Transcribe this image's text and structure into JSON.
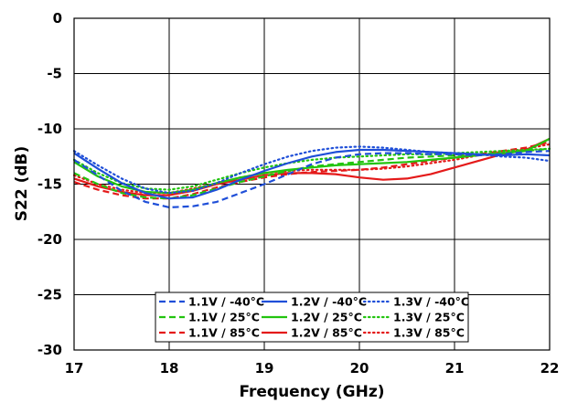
{
  "chart_data": {
    "type": "line",
    "title": "",
    "xlabel": "Frequency (GHz)",
    "ylabel": "S22 (dB)",
    "xlim": [
      17,
      22
    ],
    "ylim": [
      -30,
      0
    ],
    "xticks": [
      17,
      18,
      19,
      20,
      21,
      22
    ],
    "yticks": [
      0,
      -5,
      -10,
      -15,
      -20,
      -25,
      -30
    ],
    "grid": true,
    "legend_position": "bottom-center",
    "series": [
      {
        "name": "1.1V / -40°C",
        "color": "#1f4fd8",
        "dash": "dashed",
        "x": [
          17,
          17.25,
          17.5,
          17.75,
          18,
          18.25,
          18.5,
          18.75,
          19,
          19.25,
          19.5,
          19.75,
          20,
          20.25,
          20.5,
          20.75,
          21,
          21.25,
          21.5,
          21.75,
          22
        ],
        "y": [
          -12.8,
          -14.2,
          -15.6,
          -16.6,
          -17.1,
          -17.0,
          -16.6,
          -15.8,
          -15.0,
          -14.1,
          -13.2,
          -12.6,
          -12.3,
          -12.2,
          -12.2,
          -12.3,
          -12.3,
          -12.4,
          -12.3,
          -12.1,
          -12.0
        ]
      },
      {
        "name": "1.2V / -40°C",
        "color": "#1f4fd8",
        "dash": "solid",
        "x": [
          17,
          17.25,
          17.5,
          17.75,
          18,
          18.25,
          18.5,
          18.75,
          19,
          19.25,
          19.5,
          19.75,
          20,
          20.25,
          20.5,
          20.75,
          21,
          21.25,
          21.5,
          21.75,
          22
        ],
        "y": [
          -12.2,
          -13.6,
          -14.9,
          -15.8,
          -16.3,
          -16.2,
          -15.5,
          -14.6,
          -13.8,
          -13.1,
          -12.5,
          -12.1,
          -11.9,
          -11.9,
          -12.0,
          -12.1,
          -12.2,
          -12.3,
          -12.4,
          -12.3,
          -12.4
        ]
      },
      {
        "name": "1.3V / -40°C",
        "color": "#1f4fd8",
        "dash": "dotted",
        "x": [
          17,
          17.25,
          17.5,
          17.75,
          18,
          18.25,
          18.5,
          18.75,
          19,
          19.25,
          19.5,
          19.75,
          20,
          20.25,
          20.5,
          20.75,
          21,
          21.25,
          21.5,
          21.75,
          22
        ],
        "y": [
          -12.0,
          -13.3,
          -14.5,
          -15.4,
          -15.8,
          -15.6,
          -14.9,
          -14.0,
          -13.2,
          -12.5,
          -12.0,
          -11.7,
          -11.6,
          -11.7,
          -11.9,
          -12.1,
          -12.2,
          -12.3,
          -12.5,
          -12.6,
          -12.9
        ]
      },
      {
        "name": "1.1V / 25°C",
        "color": "#22c40f",
        "dash": "dashed",
        "x": [
          17,
          17.25,
          17.5,
          17.75,
          18,
          18.25,
          18.5,
          18.75,
          19,
          19.25,
          19.5,
          19.75,
          20,
          20.25,
          20.5,
          20.75,
          21,
          21.25,
          21.5,
          21.75,
          22
        ],
        "y": [
          -14.0,
          -15.0,
          -15.8,
          -16.2,
          -16.3,
          -16.0,
          -15.4,
          -14.8,
          -14.3,
          -13.8,
          -13.4,
          -13.2,
          -13.0,
          -12.8,
          -12.6,
          -12.5,
          -12.4,
          -12.3,
          -12.2,
          -12.0,
          -11.8
        ]
      },
      {
        "name": "1.2V / 25°C",
        "color": "#22c40f",
        "dash": "solid",
        "x": [
          17,
          17.25,
          17.5,
          17.75,
          18,
          18.25,
          18.5,
          18.75,
          19,
          19.25,
          19.5,
          19.75,
          20,
          20.25,
          20.5,
          20.75,
          21,
          21.25,
          21.5,
          21.75,
          22
        ],
        "y": [
          -13.0,
          -14.3,
          -15.2,
          -15.7,
          -15.8,
          -15.5,
          -14.9,
          -14.4,
          -14.0,
          -13.7,
          -13.5,
          -13.3,
          -13.2,
          -13.1,
          -13.0,
          -12.8,
          -12.6,
          -12.4,
          -12.2,
          -12.0,
          -10.9
        ]
      },
      {
        "name": "1.3V / 25°C",
        "color": "#22c40f",
        "dash": "dotted",
        "x": [
          17,
          17.25,
          17.5,
          17.75,
          18,
          18.25,
          18.5,
          18.75,
          19,
          19.25,
          19.5,
          19.75,
          20,
          20.25,
          20.5,
          20.75,
          21,
          21.25,
          21.5,
          21.75,
          22
        ],
        "y": [
          -12.8,
          -14.0,
          -14.9,
          -15.4,
          -15.5,
          -15.2,
          -14.6,
          -14.0,
          -13.5,
          -13.1,
          -12.8,
          -12.6,
          -12.5,
          -12.4,
          -12.3,
          -12.3,
          -12.2,
          -12.1,
          -12.0,
          -11.9,
          -11.8
        ]
      },
      {
        "name": "1.1V / 85°C",
        "color": "#e41a1a",
        "dash": "dashed",
        "x": [
          17,
          17.25,
          17.5,
          17.75,
          18,
          18.25,
          18.5,
          18.75,
          19,
          19.25,
          19.5,
          19.75,
          20,
          20.25,
          20.5,
          20.75,
          21,
          21.25,
          21.5,
          21.75,
          22
        ],
        "y": [
          -14.8,
          -15.5,
          -16.0,
          -16.3,
          -16.3,
          -15.9,
          -15.3,
          -14.8,
          -14.4,
          -14.1,
          -13.9,
          -13.8,
          -13.7,
          -13.5,
          -13.2,
          -12.9,
          -12.6,
          -12.3,
          -12.0,
          -11.7,
          -11.2
        ]
      },
      {
        "name": "1.2V / 85°C",
        "color": "#e41a1a",
        "dash": "solid",
        "x": [
          17,
          17.25,
          17.5,
          17.75,
          18,
          18.25,
          18.5,
          18.75,
          19,
          19.25,
          19.5,
          19.75,
          20,
          20.25,
          20.5,
          20.75,
          21,
          21.25,
          21.5,
          21.75,
          22
        ],
        "y": [
          -14.5,
          -15.2,
          -15.7,
          -16.0,
          -16.0,
          -15.6,
          -15.0,
          -14.6,
          -14.2,
          -14.0,
          -14.0,
          -14.1,
          -14.4,
          -14.6,
          -14.5,
          -14.1,
          -13.5,
          -12.9,
          -12.3,
          -11.9,
          -10.9
        ]
      },
      {
        "name": "1.3V / 85°C",
        "color": "#e41a1a",
        "dash": "dotted",
        "x": [
          17,
          17.25,
          17.5,
          17.75,
          18,
          18.25,
          18.5,
          18.75,
          19,
          19.25,
          19.5,
          19.75,
          20,
          20.25,
          20.5,
          20.75,
          21,
          21.25,
          21.5,
          21.75,
          22
        ],
        "y": [
          -14.2,
          -15.0,
          -15.5,
          -15.8,
          -15.8,
          -15.4,
          -14.9,
          -14.4,
          -14.0,
          -13.8,
          -13.7,
          -13.7,
          -13.7,
          -13.6,
          -13.4,
          -13.1,
          -12.8,
          -12.4,
          -12.1,
          -11.8,
          -11.4
        ]
      }
    ],
    "legend_columns": [
      [
        "1.1V / -40°C",
        "1.1V / 25°C",
        "1.1V / 85°C"
      ],
      [
        "1.2V / -40°C",
        "1.2V / 25°C",
        "1.2V / 85°C"
      ],
      [
        "1.3V / -40°C",
        "1.3V / 25°C",
        "1.3V / 85°C"
      ]
    ]
  }
}
